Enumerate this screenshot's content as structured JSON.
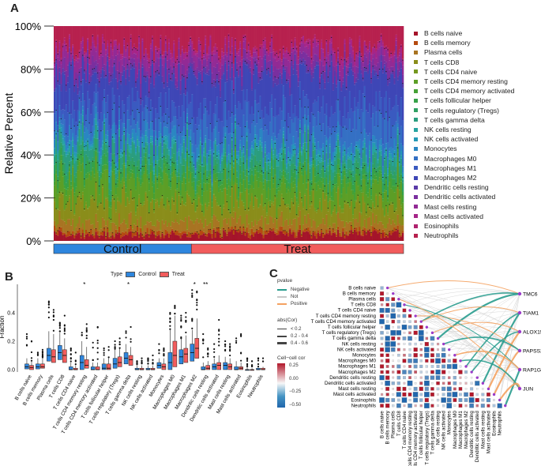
{
  "panels": {
    "a": "A",
    "b": "B",
    "c": "C"
  },
  "chart_data": [
    {
      "type": "bar",
      "subtype": "stacked-percent",
      "ylabel": "Relative Percent",
      "yticks": [
        "0%",
        "20%",
        "40%",
        "60%",
        "80%",
        "100%"
      ],
      "ylim": [
        0,
        100
      ],
      "groups": [
        {
          "name": "Control",
          "samples": 83,
          "color": "#2e86de"
        },
        {
          "name": "Treat",
          "samples": 128,
          "color": "#f25c5c"
        }
      ],
      "legend_placement": "right",
      "series": [
        {
          "name": "B cells naive",
          "color": "#a5142a",
          "mean_control": 2.5,
          "mean_treat": 3
        },
        {
          "name": "B cells memory",
          "color": "#b54a10",
          "mean_control": 1.5,
          "mean_treat": 1.5
        },
        {
          "name": "Plasma cells",
          "color": "#a87422",
          "mean_control": 4,
          "mean_treat": 4
        },
        {
          "name": "T cells CD8",
          "color": "#8a8d1a",
          "mean_control": 9,
          "mean_treat": 8
        },
        {
          "name": "T cells CD4 naive",
          "color": "#75981f",
          "mean_control": 1,
          "mean_treat": 1
        },
        {
          "name": "T cells CD4 memory resting",
          "color": "#5c9e26",
          "mean_control": 9,
          "mean_treat": 7
        },
        {
          "name": "T cells CD4 memory activated",
          "color": "#45a135",
          "mean_control": 2,
          "mean_treat": 3
        },
        {
          "name": "T cells follicular helper",
          "color": "#35a148",
          "mean_control": 3,
          "mean_treat": 3
        },
        {
          "name": "T cells regulatory (Tregs)",
          "color": "#2fa063",
          "mean_control": 3,
          "mean_treat": 3
        },
        {
          "name": "T cells gamma delta",
          "color": "#2a9d7f",
          "mean_control": 5,
          "mean_treat": 4
        },
        {
          "name": "NK cells resting",
          "color": "#27a3a0",
          "mean_control": 2,
          "mean_treat": 2
        },
        {
          "name": "NK cells activated",
          "color": "#2599b5",
          "mean_control": 1.5,
          "mean_treat": 1.5
        },
        {
          "name": "Monocytes",
          "color": "#2a86c2",
          "mean_control": 4,
          "mean_treat": 3
        },
        {
          "name": "Macrophages M0",
          "color": "#3470c4",
          "mean_control": 6,
          "mean_treat": 9
        },
        {
          "name": "Macrophages M1",
          "color": "#3a5ac0",
          "mean_control": 7,
          "mean_treat": 8
        },
        {
          "name": "Macrophages M2",
          "color": "#3e46b6",
          "mean_control": 12,
          "mean_treat": 14
        },
        {
          "name": "Dendritic cells resting",
          "color": "#5a3aa8",
          "mean_control": 2,
          "mean_treat": 2
        },
        {
          "name": "Dendritic cells activated",
          "color": "#7a2f9f",
          "mean_control": 4,
          "mean_treat": 4
        },
        {
          "name": "Mast cells resting",
          "color": "#922a95",
          "mean_control": 5,
          "mean_treat": 4
        },
        {
          "name": "Mast cells activated",
          "color": "#a62588",
          "mean_control": 2,
          "mean_treat": 2
        },
        {
          "name": "Eosinophils",
          "color": "#b0236e",
          "mean_control": 1,
          "mean_treat": 1
        },
        {
          "name": "Neutrophils",
          "color": "#b7214e",
          "mean_control": 9.5,
          "mean_treat": 9.5
        }
      ]
    },
    {
      "type": "box",
      "ylabel": "Fraction",
      "legend_title": "Type",
      "legend_items": [
        {
          "name": "Control",
          "color": "#2e86de"
        },
        {
          "name": "Treat",
          "color": "#f25c5c"
        }
      ],
      "ylim": [
        0,
        0.6
      ],
      "yticks": [
        "0.0",
        "0.2",
        "0.4"
      ],
      "categories": [
        "B cells naive",
        "B cells memory",
        "Plasma cells",
        "T cells CD8",
        "T cells CD4 naive",
        "T cells CD4 memory resting",
        "T cells CD4 memory activated",
        "T cells follicular helper",
        "T cells regulatory (Tregs)",
        "T cells gamma delta",
        "NK cells resting",
        "NK cells activated",
        "Monocytes",
        "Macrophages M0",
        "Macrophages M1",
        "Macrophages M2",
        "Dendritic cells resting",
        "Dendritic cells activated",
        "Mast cells resting",
        "Mast cells activated",
        "Eosinophils",
        "Neutrophils"
      ],
      "control": {
        "q1": [
          0.005,
          0.005,
          0.06,
          0.07,
          0.0,
          0.0,
          0.0,
          0.0,
          0.01,
          0.04,
          0.0,
          0.0,
          0.01,
          0.0,
          0.04,
          0.06,
          0.0,
          0.0,
          0.0,
          0.0,
          0.0,
          0.0
        ],
        "median": [
          0.02,
          0.02,
          0.1,
          0.12,
          0.0,
          0.05,
          0.0,
          0.01,
          0.04,
          0.08,
          0.0,
          0.0,
          0.03,
          0.05,
          0.09,
          0.12,
          0.0,
          0.02,
          0.03,
          0.0,
          0.0,
          0.0
        ],
        "q3": [
          0.04,
          0.04,
          0.15,
          0.17,
          0.02,
          0.1,
          0.02,
          0.04,
          0.08,
          0.12,
          0.01,
          0.01,
          0.05,
          0.12,
          0.14,
          0.18,
          0.02,
          0.04,
          0.05,
          0.02,
          0.0,
          0.01
        ],
        "whisker_high": [
          0.08,
          0.08,
          0.27,
          0.26,
          0.05,
          0.2,
          0.05,
          0.08,
          0.14,
          0.18,
          0.03,
          0.03,
          0.08,
          0.28,
          0.22,
          0.28,
          0.05,
          0.08,
          0.09,
          0.06,
          0.02,
          0.02
        ],
        "outliers_high": [
          0.25,
          0.12,
          0.48,
          0.33,
          0.15,
          0.26,
          0.19,
          0.15,
          0.2,
          0.27,
          0.06,
          0.08,
          0.18,
          0.4,
          0.38,
          0.56,
          0.25,
          0.18,
          0.2,
          0.22,
          0.08,
          0.08
        ]
      },
      "treat": {
        "q1": [
          0.0,
          0.01,
          0.05,
          0.05,
          0.0,
          0.01,
          0.0,
          0.0,
          0.02,
          0.03,
          0.0,
          0.0,
          0.0,
          0.02,
          0.05,
          0.08,
          0.0,
          0.0,
          0.0,
          0.0,
          0.0,
          0.0
        ],
        "median": [
          0.015,
          0.02,
          0.09,
          0.1,
          0.0,
          0.03,
          0.0,
          0.01,
          0.05,
          0.07,
          0.0,
          0.0,
          0.02,
          0.1,
          0.11,
          0.15,
          0.01,
          0.03,
          0.02,
          0.01,
          0.0,
          0.0
        ],
        "q3": [
          0.03,
          0.04,
          0.14,
          0.14,
          0.01,
          0.07,
          0.02,
          0.04,
          0.09,
          0.1,
          0.01,
          0.01,
          0.04,
          0.2,
          0.15,
          0.22,
          0.03,
          0.05,
          0.04,
          0.02,
          0.0,
          0.01
        ],
        "whisker_high": [
          0.06,
          0.08,
          0.25,
          0.22,
          0.03,
          0.16,
          0.05,
          0.08,
          0.15,
          0.16,
          0.03,
          0.03,
          0.08,
          0.38,
          0.24,
          0.36,
          0.06,
          0.1,
          0.08,
          0.05,
          0.01,
          0.02
        ],
        "outliers_high": [
          0.2,
          0.14,
          0.42,
          0.38,
          0.12,
          0.32,
          0.3,
          0.16,
          0.22,
          0.3,
          0.08,
          0.1,
          0.15,
          0.45,
          0.4,
          0.55,
          0.15,
          0.35,
          0.18,
          0.25,
          0.06,
          0.08
        ]
      },
      "significance": [
        "",
        "",
        "",
        "",
        "",
        "*",
        "",
        "",
        "",
        "*",
        "",
        "",
        "",
        "",
        "",
        "*",
        "**",
        "",
        "",
        "",
        "",
        ""
      ]
    },
    {
      "type": "heatmap",
      "subtype": "correlation-network",
      "rows": [
        "B cells naive",
        "B cells memory",
        "Plasma cells",
        "T cells CD8",
        "T cells CD4 naive",
        "T cells CD4 memory resting",
        "T cells CD4 memory activated",
        "T cells follicular helper",
        "T cells regulatory (Tregs)",
        "T cells gamma delta",
        "NK cells resting",
        "NK cells activated",
        "Monocytes",
        "Macrophages M0",
        "Macrophages M1",
        "Macrophages M2",
        "Dendritic cells resting",
        "Dendritic cells activated",
        "Mast cells resting",
        "Mast cells activated",
        "Eosinophils",
        "Neutrophils"
      ],
      "genes": [
        "TMC6",
        "TIAM1",
        "ALOX15B",
        "PAPSS2",
        "RAP1GAP",
        "JUN"
      ],
      "legend": {
        "pvalue_title": "pvalue",
        "pvalue_items": [
          {
            "name": "Negative",
            "color": "#2a9d8f"
          },
          {
            "name": "Not",
            "color": "#c8c8c8"
          },
          {
            "name": "Positive",
            "color": "#f4a261"
          }
        ],
        "abs_title": "abs(Cor)",
        "abs_items": [
          "< 0.2",
          "0.2 - 0.4",
          "0.4 - 0.6"
        ],
        "color_title": "Cell−cell cor",
        "color_ticks": [
          "0.25",
          "0.00",
          "−0.25",
          "−0.50"
        ],
        "color_low": "#2166ac",
        "color_mid": "#f7f7f7",
        "color_high": "#b2182b"
      },
      "links": [
        {
          "gene": "TMC6",
          "cell": "B cells naive",
          "sign": "Positive"
        },
        {
          "gene": "TMC6",
          "cell": "T cells CD4 memory activated",
          "sign": "Negative"
        },
        {
          "gene": "TMC6",
          "cell": "T cells gamma delta",
          "sign": "Negative"
        },
        {
          "gene": "TIAM1",
          "cell": "T cells CD4 memory activated",
          "sign": "Positive"
        },
        {
          "gene": "TIAM1",
          "cell": "Macrophages M1",
          "sign": "Negative"
        },
        {
          "gene": "TIAM1",
          "cell": "Dendritic cells activated",
          "sign": "Negative"
        },
        {
          "gene": "ALOX15B",
          "cell": "T cells regulatory (Tregs)",
          "sign": "Positive"
        },
        {
          "gene": "ALOX15B",
          "cell": "Macrophages M2",
          "sign": "Negative"
        },
        {
          "gene": "ALOX15B",
          "cell": "Mast cells resting",
          "sign": "Positive"
        },
        {
          "gene": "PAPSS2",
          "cell": "T cells CD4 memory resting",
          "sign": "Positive"
        },
        {
          "gene": "PAPSS2",
          "cell": "NK cells resting",
          "sign": "Negative"
        },
        {
          "gene": "PAPSS2",
          "cell": "Mast cells activated",
          "sign": "Positive"
        },
        {
          "gene": "RAP1GAP",
          "cell": "T cells CD8",
          "sign": "Negative"
        },
        {
          "gene": "RAP1GAP",
          "cell": "Monocytes",
          "sign": "Positive"
        },
        {
          "gene": "RAP1GAP",
          "cell": "Neutrophils",
          "sign": "Negative"
        },
        {
          "gene": "JUN",
          "cell": "Plasma cells",
          "sign": "Positive"
        },
        {
          "gene": "JUN",
          "cell": "Macrophages M0",
          "sign": "Negative"
        },
        {
          "gene": "JUN",
          "cell": "Eosinophils",
          "sign": "Positive"
        }
      ]
    }
  ]
}
